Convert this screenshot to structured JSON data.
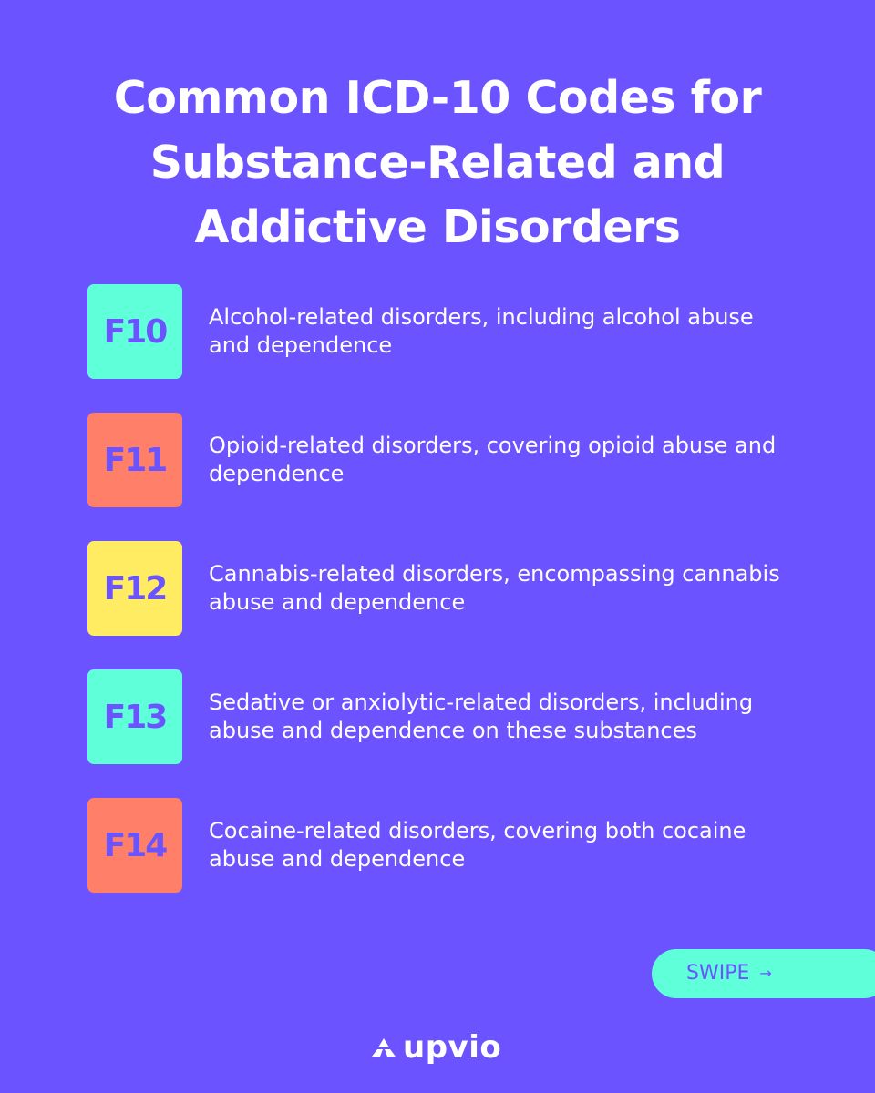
{
  "title": {
    "line1": "Common ICD-10 Codes for",
    "line2": "Substance-Related and",
    "line3": "Addictive Disorders"
  },
  "codes": [
    {
      "code": "F10",
      "description": "Alcohol-related disorders, including alcohol abuse and dependence",
      "color": "#5FFFD9"
    },
    {
      "code": "F11",
      "description": "Opioid-related disorders, covering opioid abuse and dependence",
      "color": "#FF7F68"
    },
    {
      "code": "F12",
      "description": "Cannabis-related disorders, encompassing cannabis abuse and dependence",
      "color": "#FFEC62"
    },
    {
      "code": "F13",
      "description": "Sedative or anxiolytic-related disorders, including abuse and dependence on these substances",
      "color": "#5FFFD9"
    },
    {
      "code": "F14",
      "description": "Cocaine-related disorders, covering both cocaine abuse and dependence",
      "color": "#FF7F68"
    }
  ],
  "swipe": {
    "label": "SWIPE",
    "icon": "arrow-right-icon"
  },
  "brand": {
    "name": "upvio",
    "icon": "triangle-logo-icon"
  },
  "colors": {
    "background": "#6B53FF",
    "text": "#FFFFFF",
    "swipe_background": "#5FFFD9"
  }
}
